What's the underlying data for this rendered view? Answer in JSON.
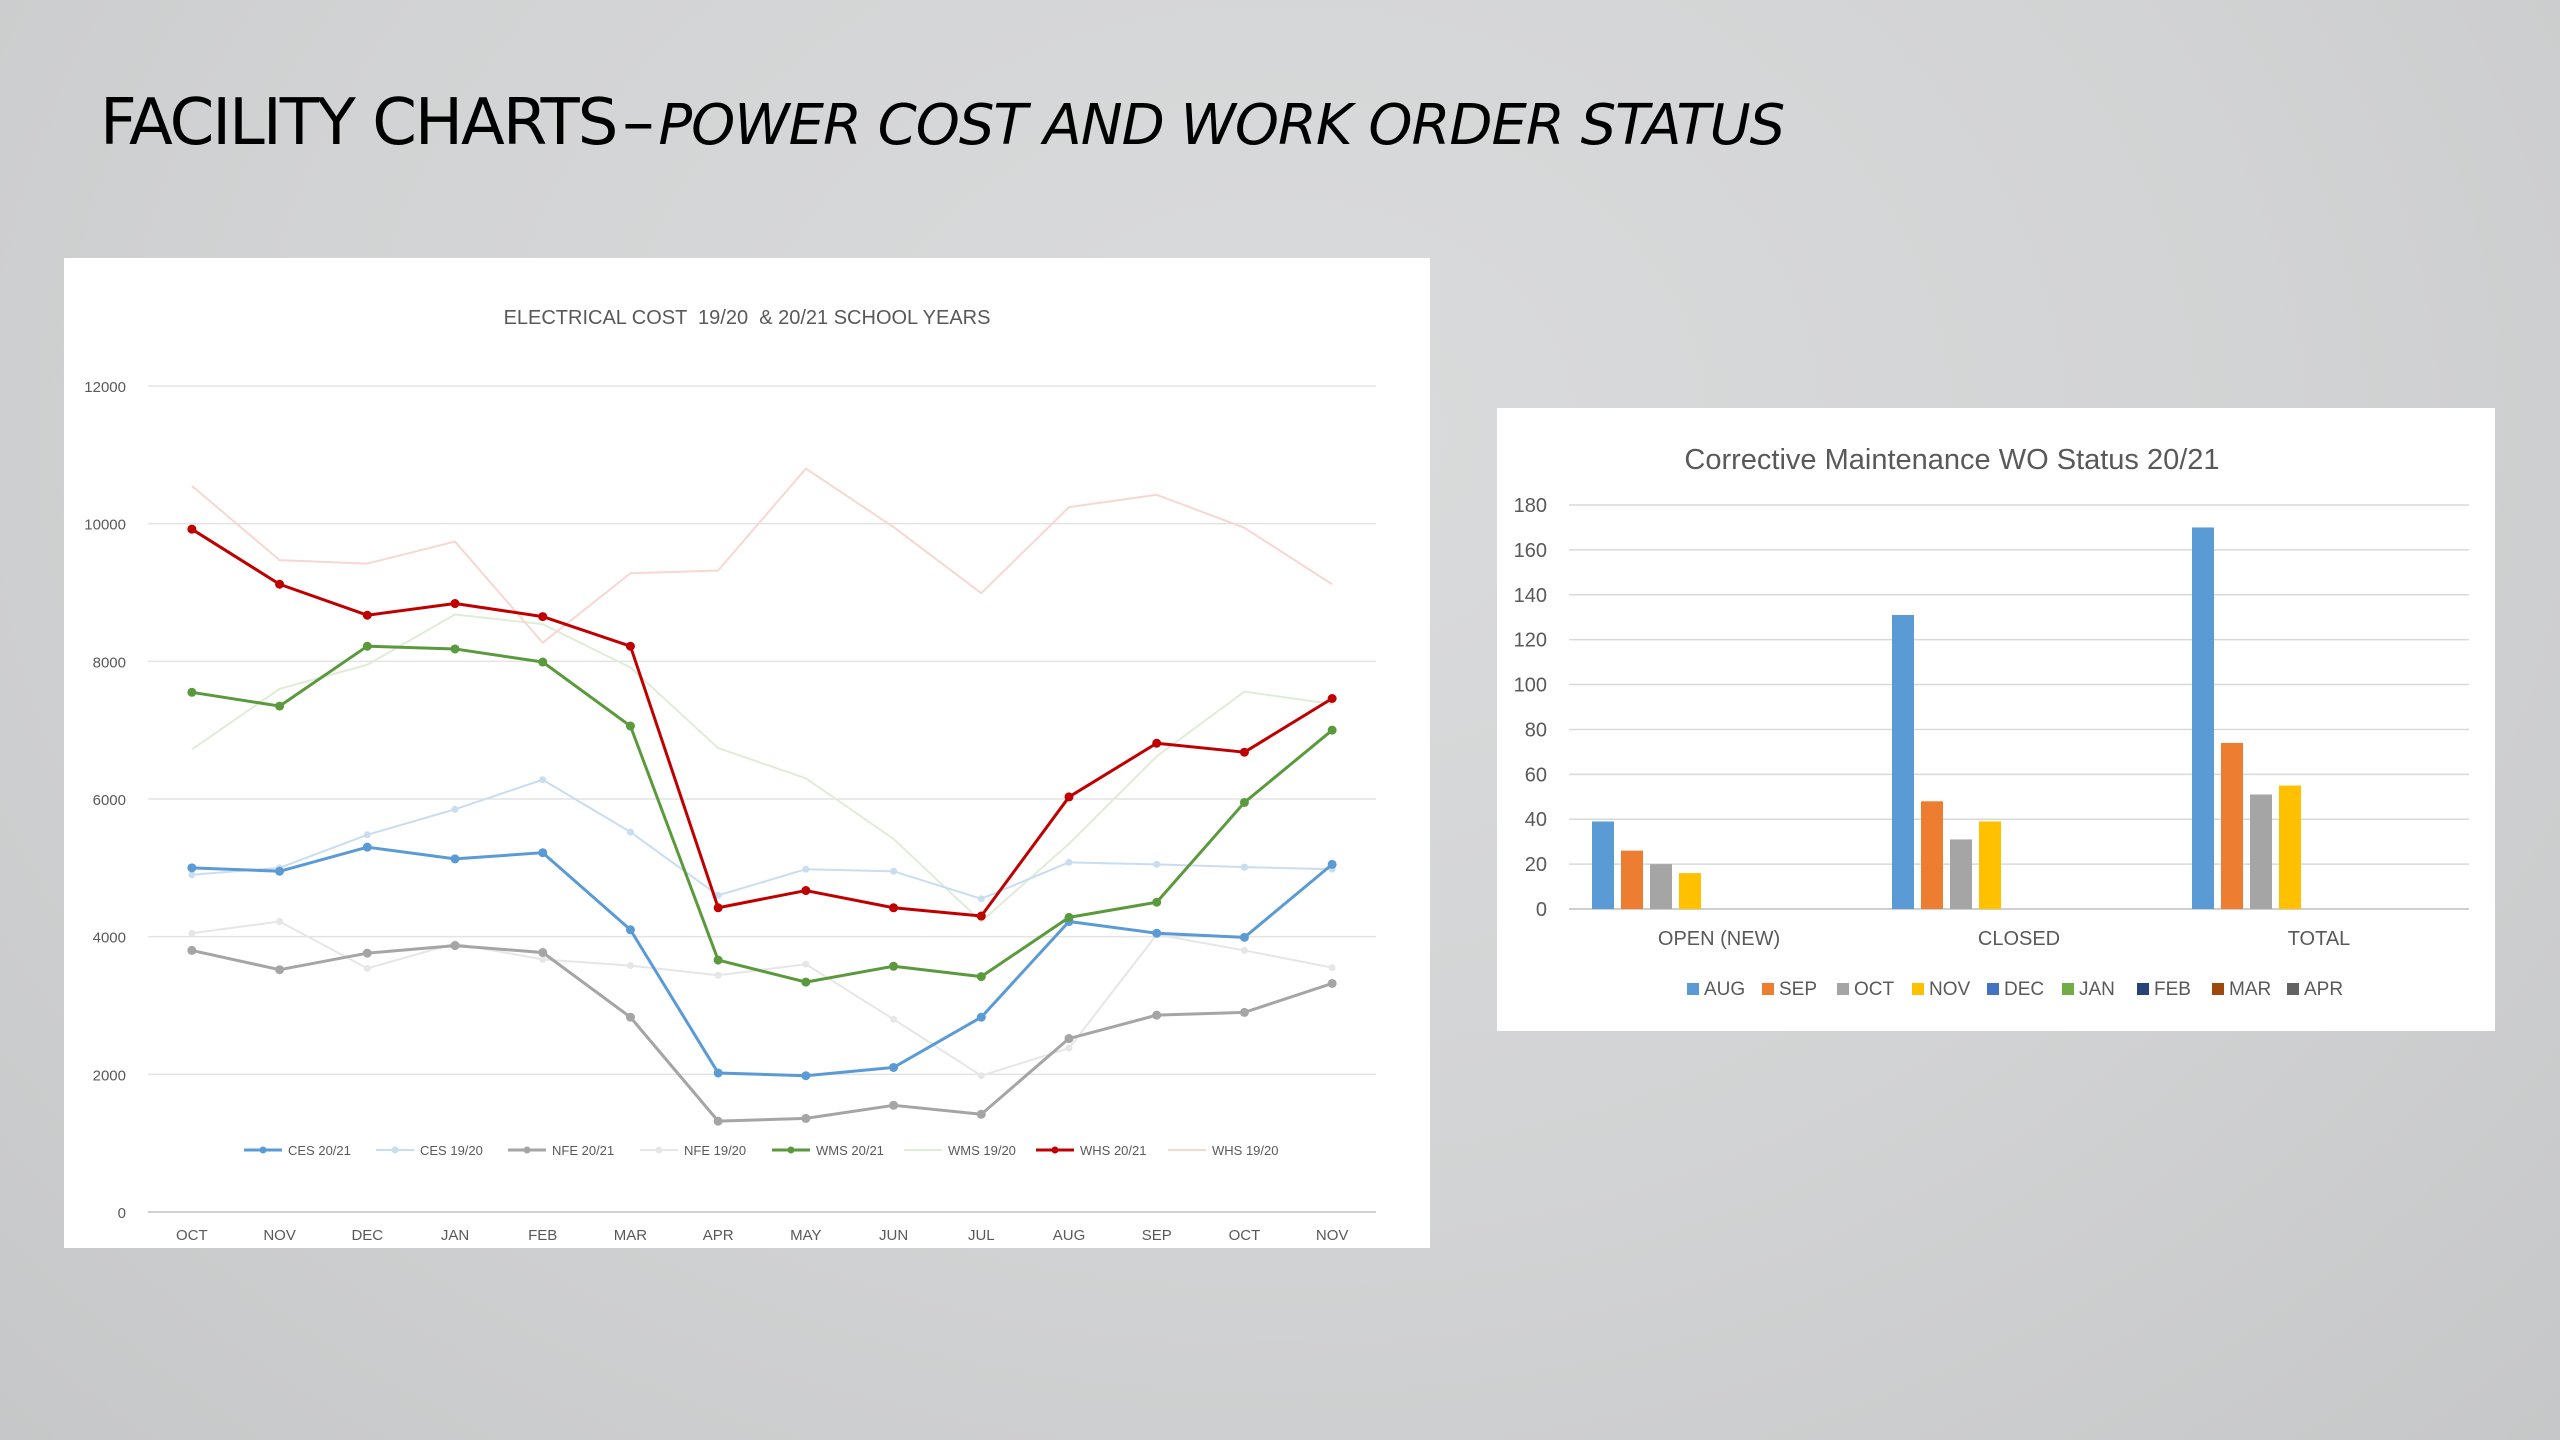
{
  "slide": {
    "title_main": "FACILITY CHARTS",
    "title_dash": "–",
    "title_sub": "POWER COST AND WORK ORDER STATUS"
  },
  "chart_data": [
    {
      "type": "line",
      "title": "ELECTRICAL COST  19/20  & 20/21 SCHOOL YEARS",
      "categories": [
        "OCT",
        "NOV",
        "DEC",
        "JAN",
        "FEB",
        "MAR",
        "APR",
        "MAY",
        "JUN",
        "JUL",
        "AUG",
        "SEP",
        "OCT",
        "NOV"
      ],
      "ylim": [
        0,
        12000
      ],
      "yticks": [
        0,
        2000,
        4000,
        6000,
        8000,
        10000,
        12000
      ],
      "grid": true,
      "legend": "bottom",
      "series": [
        {
          "name": "CES 20/21",
          "color": "#5b9bd5",
          "markers": true,
          "width": 3,
          "values": [
            5000,
            4950,
            5300,
            5130,
            5220,
            4100,
            2020,
            1980,
            2100,
            2830,
            4220,
            4050,
            3990,
            5050
          ]
        },
        {
          "name": "CES 19/20",
          "color": "#c9ddf1",
          "markers": true,
          "width": 2,
          "values": [
            4900,
            5000,
            5480,
            5850,
            6280,
            5520,
            4600,
            4980,
            4950,
            4550,
            5080,
            5050,
            5010,
            4980
          ]
        },
        {
          "name": "NFE 20/21",
          "color": "#a5a5a5",
          "markers": true,
          "width": 3,
          "values": [
            3800,
            3520,
            3760,
            3870,
            3770,
            2830,
            1320,
            1360,
            1550,
            1420,
            2520,
            2860,
            2900,
            3320
          ]
        },
        {
          "name": "NFE 19/20",
          "color": "#e6e6e6",
          "markers": true,
          "width": 2,
          "values": [
            4050,
            4220,
            3540,
            3900,
            3670,
            3580,
            3440,
            3600,
            2800,
            1980,
            2380,
            4030,
            3800,
            3550
          ]
        },
        {
          "name": "WMS 20/21",
          "color": "#5a9a3d",
          "markers": true,
          "width": 3,
          "values": [
            7550,
            7350,
            8220,
            8180,
            7990,
            7060,
            3660,
            3340,
            3570,
            3420,
            4280,
            4500,
            5950,
            7000
          ]
        },
        {
          "name": "WMS 19/20",
          "color": "#e0ecd8",
          "markers": false,
          "width": 2,
          "values": [
            6720,
            7600,
            7950,
            8680,
            8540,
            7910,
            6740,
            6300,
            5420,
            4220,
            5350,
            6620,
            7560,
            7380
          ]
        },
        {
          "name": "WHS 20/21",
          "color": "#c00000",
          "markers": true,
          "width": 3,
          "values": [
            9920,
            9120,
            8670,
            8840,
            8650,
            8220,
            4420,
            4670,
            4420,
            4300,
            6030,
            6810,
            6680,
            7460
          ]
        },
        {
          "name": "WHS 19/20",
          "color": "#f7d7d2",
          "markers": false,
          "width": 2,
          "values": [
            10550,
            9470,
            9420,
            9740,
            8270,
            9280,
            9320,
            10800,
            9950,
            8990,
            10240,
            10420,
            9940,
            9120
          ]
        }
      ]
    },
    {
      "type": "bar",
      "title": "Corrective Maintenance WO Status 20/21",
      "categories": [
        "OPEN (NEW)",
        "CLOSED",
        "TOTAL"
      ],
      "ylim": [
        0,
        180
      ],
      "yticks": [
        0,
        20,
        40,
        60,
        80,
        100,
        120,
        140,
        160,
        180
      ],
      "grid": true,
      "legend": "bottom",
      "series": [
        {
          "name": "AUG",
          "color": "#5b9bd5",
          "values": [
            39,
            131,
            170
          ]
        },
        {
          "name": "SEP",
          "color": "#ed7d31",
          "values": [
            26,
            48,
            74
          ]
        },
        {
          "name": "OCT",
          "color": "#a5a5a5",
          "values": [
            20,
            31,
            51
          ]
        },
        {
          "name": "NOV",
          "color": "#ffc000",
          "values": [
            16,
            39,
            55
          ]
        },
        {
          "name": "DEC",
          "color": "#4472c4",
          "values": [
            0,
            0,
            0
          ]
        },
        {
          "name": "JAN",
          "color": "#70ad47",
          "values": [
            0,
            0,
            0
          ]
        },
        {
          "name": "FEB",
          "color": "#264478",
          "values": [
            0,
            0,
            0
          ]
        },
        {
          "name": "MAR",
          "color": "#9e480e",
          "values": [
            0,
            0,
            0
          ]
        },
        {
          "name": "APR",
          "color": "#636363",
          "values": [
            0,
            0,
            0
          ]
        }
      ]
    }
  ]
}
